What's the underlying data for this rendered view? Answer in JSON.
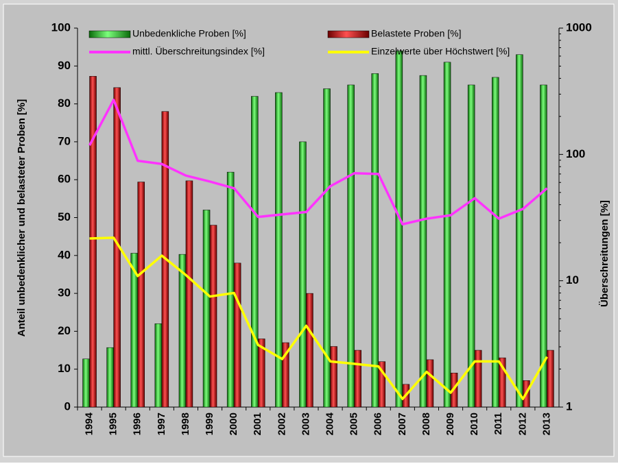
{
  "chart_data": {
    "type": "bar_line",
    "categories": [
      "1994",
      "1995",
      "1996",
      "1997",
      "1998",
      "1999",
      "2000",
      "2001",
      "2002",
      "2003",
      "2004",
      "2005",
      "2006",
      "2007",
      "2008",
      "2009",
      "2010",
      "2011",
      "2012",
      "2013"
    ],
    "y_label": "Anteil unbedenklicher und belasteter Proben [%]",
    "y2_label": "Überschreitungen [%]",
    "ylim": [
      0,
      100
    ],
    "yticks": [
      0,
      10,
      20,
      30,
      40,
      50,
      60,
      70,
      80,
      90,
      100
    ],
    "y2lim": [
      1,
      1000
    ],
    "y2ticks": [
      1,
      10,
      100,
      1000
    ],
    "y2scale": "log",
    "grid": false,
    "legend": "top",
    "series": [
      {
        "name": "Unbedenkliche Proben [%]",
        "type": "bar",
        "color": "#1fbf1f",
        "values": [
          12.7,
          15.7,
          40.6,
          22,
          40.3,
          52,
          62,
          82,
          83,
          70,
          84,
          85,
          88,
          94,
          87.5,
          91,
          85,
          87,
          93,
          85
        ]
      },
      {
        "name": "Belastete Proben [%]",
        "type": "bar",
        "color": "#dd1111",
        "values": [
          87.3,
          84.3,
          59.4,
          78,
          59.7,
          48,
          38,
          18,
          17,
          30,
          16,
          15,
          12,
          6,
          12.5,
          9,
          15,
          13,
          7,
          15
        ]
      },
      {
        "name": "mittl. Überschreitungsindex [%]",
        "type": "line",
        "axis": "y2",
        "color": "#ff33ff",
        "values": [
          118,
          270,
          89,
          84,
          68,
          61,
          54,
          32,
          33.5,
          35,
          56,
          71,
          70,
          28,
          31,
          33,
          45,
          31,
          37,
          54
        ]
      },
      {
        "name": "Einzelwerte über Höchstwert [%]",
        "type": "line",
        "axis": "y2",
        "color": "#ffff00",
        "values": [
          21.6,
          21.9,
          10.9,
          15.8,
          11.1,
          7.5,
          8,
          3.1,
          2.4,
          4.4,
          2.3,
          2.2,
          2.1,
          1.16,
          1.9,
          1.3,
          2.3,
          2.3,
          1.16,
          2.5
        ]
      }
    ]
  }
}
